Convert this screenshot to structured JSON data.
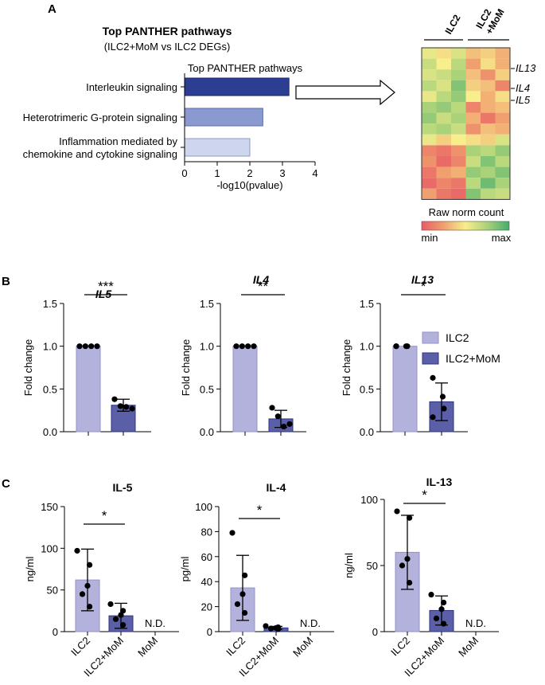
{
  "panel_labels": {
    "a": "A",
    "b": "B",
    "c": "C"
  },
  "colors": {
    "ilc2": "#b3b2dc",
    "ilc2_edge": "#9493c9",
    "ilc2mom": "#5a5fa8",
    "ilc2mom_edge": "#2e3382",
    "bar_dark": "#2b3e92",
    "bar_mid": "#8a9ad0",
    "bar_light": "#cdd6ec"
  },
  "chart_data": [
    {
      "id": "panther",
      "type": "bar",
      "orientation": "horizontal",
      "title": "Top PANTHER pathways",
      "subtitle": "(ILC2+MoM vs ILC2 DEGs)",
      "inner_title": "Top PANTHER pathways",
      "xlabel": "-log10(pvalue)",
      "xlim": [
        0,
        4
      ],
      "xticks": [
        "0",
        "1",
        "2",
        "3",
        "4"
      ],
      "categories": [
        "Interleukin signaling",
        "Heterotrimeric G-protein signaling",
        "Inflammation mediated by|chemokine and cytokine signaling"
      ],
      "values": [
        3.2,
        2.4,
        2.0
      ]
    },
    {
      "id": "heatmap",
      "type": "heatmap",
      "col_groups": [
        "ILC2",
        "ILC2|+MoM"
      ],
      "row_labels": [
        "IL13",
        "IL4",
        "IL5"
      ],
      "legend_title": "Raw norm count",
      "legend_min": "min",
      "legend_max": "max",
      "rows": 14,
      "cols": 6,
      "values": [
        [
          0.55,
          0.45,
          0.6,
          0.35,
          0.4,
          0.3
        ],
        [
          0.65,
          0.5,
          0.7,
          0.25,
          0.45,
          0.3
        ],
        [
          0.6,
          0.65,
          0.75,
          0.35,
          0.2,
          0.4
        ],
        [
          0.7,
          0.6,
          0.85,
          0.4,
          0.35,
          0.15
        ],
        [
          0.55,
          0.7,
          0.8,
          0.5,
          0.3,
          0.45
        ],
        [
          0.75,
          0.8,
          0.7,
          0.15,
          0.3,
          0.35
        ],
        [
          0.8,
          0.65,
          0.75,
          0.3,
          0.1,
          0.25
        ],
        [
          0.7,
          0.75,
          0.65,
          0.2,
          0.35,
          0.3
        ],
        [
          0.55,
          0.4,
          0.5,
          0.45,
          0.4,
          0.6
        ],
        [
          0.15,
          0.1,
          0.2,
          0.75,
          0.7,
          0.8
        ],
        [
          0.2,
          0.05,
          0.15,
          0.65,
          0.85,
          0.7
        ],
        [
          0.1,
          0.25,
          0.3,
          0.8,
          0.75,
          0.85
        ],
        [
          0.05,
          0.15,
          0.1,
          0.7,
          0.9,
          0.75
        ],
        [
          0.25,
          0.1,
          0.05,
          0.85,
          0.7,
          0.65
        ]
      ]
    },
    {
      "id": "b_il5",
      "type": "bar",
      "title": "IL5",
      "ylabel": "Fold change",
      "ylim": [
        0,
        1.5
      ],
      "yticks": [
        "0.0",
        "0.5",
        "1.0",
        "1.5"
      ],
      "categories": [
        "ILC2",
        "ILC2+MoM"
      ],
      "series": [
        {
          "name": "ILC2",
          "value": 1.0,
          "sd": 0,
          "points": [
            1,
            1,
            1,
            1
          ]
        },
        {
          "name": "ILC2+MoM",
          "value": 0.31,
          "sd": 0.07,
          "points": [
            0.38,
            0.3,
            0.29,
            0.27
          ]
        }
      ],
      "significance": "***"
    },
    {
      "id": "b_il4",
      "type": "bar",
      "title": "IL4",
      "ylabel": "Fold change",
      "ylim": [
        0,
        1.5
      ],
      "yticks": [
        "0.0",
        "0.5",
        "1.0",
        "1.5"
      ],
      "categories": [
        "ILC2",
        "ILC2+MoM"
      ],
      "series": [
        {
          "name": "ILC2",
          "value": 1.0,
          "sd": 0,
          "points": [
            1,
            1,
            1,
            1
          ]
        },
        {
          "name": "ILC2+MoM",
          "value": 0.15,
          "sd": 0.1,
          "points": [
            0.28,
            0.18,
            0.06,
            0.09
          ]
        }
      ],
      "significance": "**"
    },
    {
      "id": "b_il13",
      "type": "bar",
      "title": "IL13",
      "ylabel": "Fold change",
      "ylim": [
        0,
        1.5
      ],
      "yticks": [
        "0.0",
        "0.5",
        "1.0",
        "1.5"
      ],
      "categories": [
        "ILC2",
        "ILC2+MoM"
      ],
      "series": [
        {
          "name": "ILC2",
          "value": 1.0,
          "sd": 0,
          "points": [
            1,
            1,
            1,
            1
          ]
        },
        {
          "name": "ILC2+MoM",
          "value": 0.35,
          "sd": 0.22,
          "points": [
            0.63,
            0.41,
            0.27,
            0.17
          ]
        }
      ],
      "significance": "*"
    },
    {
      "id": "c_il5",
      "type": "bar",
      "title": "IL-5",
      "ylabel": "ng/ml",
      "ylim": [
        0,
        150
      ],
      "yticks": [
        "0",
        "50",
        "100",
        "150"
      ],
      "categories": [
        "ILC2",
        "ILC2+MoM",
        "MoM"
      ],
      "series": [
        {
          "name": "ILC2",
          "value": 62,
          "sd": 37,
          "points": [
            97,
            80,
            55,
            45,
            30
          ]
        },
        {
          "name": "ILC2+MoM",
          "value": 19,
          "sd": 15,
          "points": [
            33,
            25,
            20,
            15,
            8
          ]
        }
      ],
      "nd_label": "N.D.",
      "significance": "*"
    },
    {
      "id": "c_il4",
      "type": "bar",
      "title": "IL-4",
      "ylabel": "pg/ml",
      "ylim": [
        0,
        100
      ],
      "yticks": [
        "0",
        "20",
        "40",
        "60",
        "80",
        "100"
      ],
      "categories": [
        "ILC2",
        "ILC2+MoM",
        "MoM"
      ],
      "series": [
        {
          "name": "ILC2",
          "value": 35,
          "sd": 26,
          "points": [
            79,
            45,
            30,
            22,
            15
          ]
        },
        {
          "name": "ILC2+MoM",
          "value": 3,
          "sd": 1.2,
          "points": [
            4.5,
            3.5,
            3,
            2.5,
            2
          ]
        }
      ],
      "nd_label": "N.D.",
      "significance": "*"
    },
    {
      "id": "c_il13",
      "type": "bar",
      "title": "IL-13",
      "ylabel": "ng/ml",
      "ylim": [
        0,
        100
      ],
      "yticks": [
        "0",
        "50",
        "100"
      ],
      "categories": [
        "ILC2",
        "ILC2+MoM",
        "MoM"
      ],
      "series": [
        {
          "name": "ILC2",
          "value": 60,
          "sd": 28,
          "points": [
            91,
            86,
            55,
            50,
            37
          ]
        },
        {
          "name": "ILC2+MoM",
          "value": 16,
          "sd": 11,
          "points": [
            28,
            22,
            17,
            10,
            6
          ]
        }
      ],
      "nd_label": "N.D.",
      "significance": "*"
    }
  ],
  "legend": {
    "items": [
      "ILC2",
      "ILC2+MoM"
    ]
  }
}
